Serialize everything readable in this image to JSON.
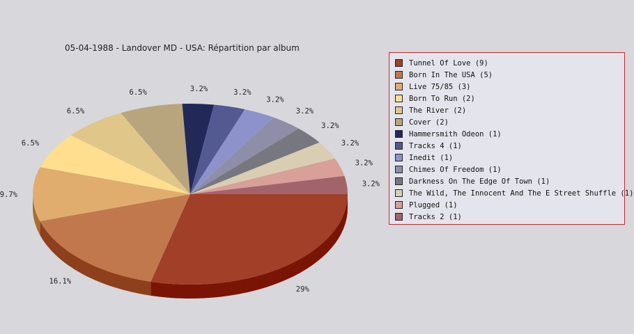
{
  "chart_data": {
    "type": "pie",
    "title": "05-04-1988 - Landover MD - USA:  Répartition par album",
    "legend_position": "right",
    "slices": [
      {
        "label": "Tunnel Of Love (9)",
        "value": 9,
        "pct_label": "29%",
        "color": "#a13f28",
        "side": "#7a1405"
      },
      {
        "label": "Born In The USA (5)",
        "value": 5,
        "pct_label": "16.1%",
        "color": "#c2784d",
        "side": "#8e3f1c"
      },
      {
        "label": "Live 75/85 (3)",
        "value": 3,
        "pct_label": "9.7%",
        "color": "#e0ad6e",
        "side": "#a8702f"
      },
      {
        "label": "Born To Run (2)",
        "value": 2,
        "pct_label": "6.5%",
        "color": "#ffdf8f",
        "side": "#c4a05a"
      },
      {
        "label": "The River (2)",
        "value": 2,
        "pct_label": "6.5%",
        "color": "#e0c688",
        "side": "#a68e55"
      },
      {
        "label": "Cover (2)",
        "value": 2,
        "pct_label": "6.5%",
        "color": "#b8a57d",
        "side": "#86754f"
      },
      {
        "label": "Hammersmith Odeon  (1)",
        "value": 1,
        "pct_label": "3.2%",
        "color": "#222858",
        "side": "#12163a"
      },
      {
        "label": "Tracks 4 (1)",
        "value": 1,
        "pct_label": "3.2%",
        "color": "#535a92",
        "side": "#363c6a"
      },
      {
        "label": "Inedit (1)",
        "value": 1,
        "pct_label": "3.2%",
        "color": "#8e92cc",
        "side": "#62669a"
      },
      {
        "label": "Chimes Of Freedom (1)",
        "value": 1,
        "pct_label": "3.2%",
        "color": "#8e8ea8",
        "side": "#66667e"
      },
      {
        "label": "Darkness On The Edge Of Town (1)",
        "value": 1,
        "pct_label": "3.2%",
        "color": "#77777f",
        "side": "#55555c"
      },
      {
        "label": "The Wild, The Innocent And The E Street Shuffle (1)",
        "value": 1,
        "pct_label": "3.2%",
        "color": "#d9ceb4",
        "side": "#a89e86"
      },
      {
        "label": "Plugged (1)",
        "value": 1,
        "pct_label": "3.2%",
        "color": "#d8a098",
        "side": "#a87068"
      },
      {
        "label": "Tracks 2 (1)",
        "value": 1,
        "pct_label": "3.2%",
        "color": "#a3636b",
        "side": "#7a3a42"
      }
    ]
  }
}
